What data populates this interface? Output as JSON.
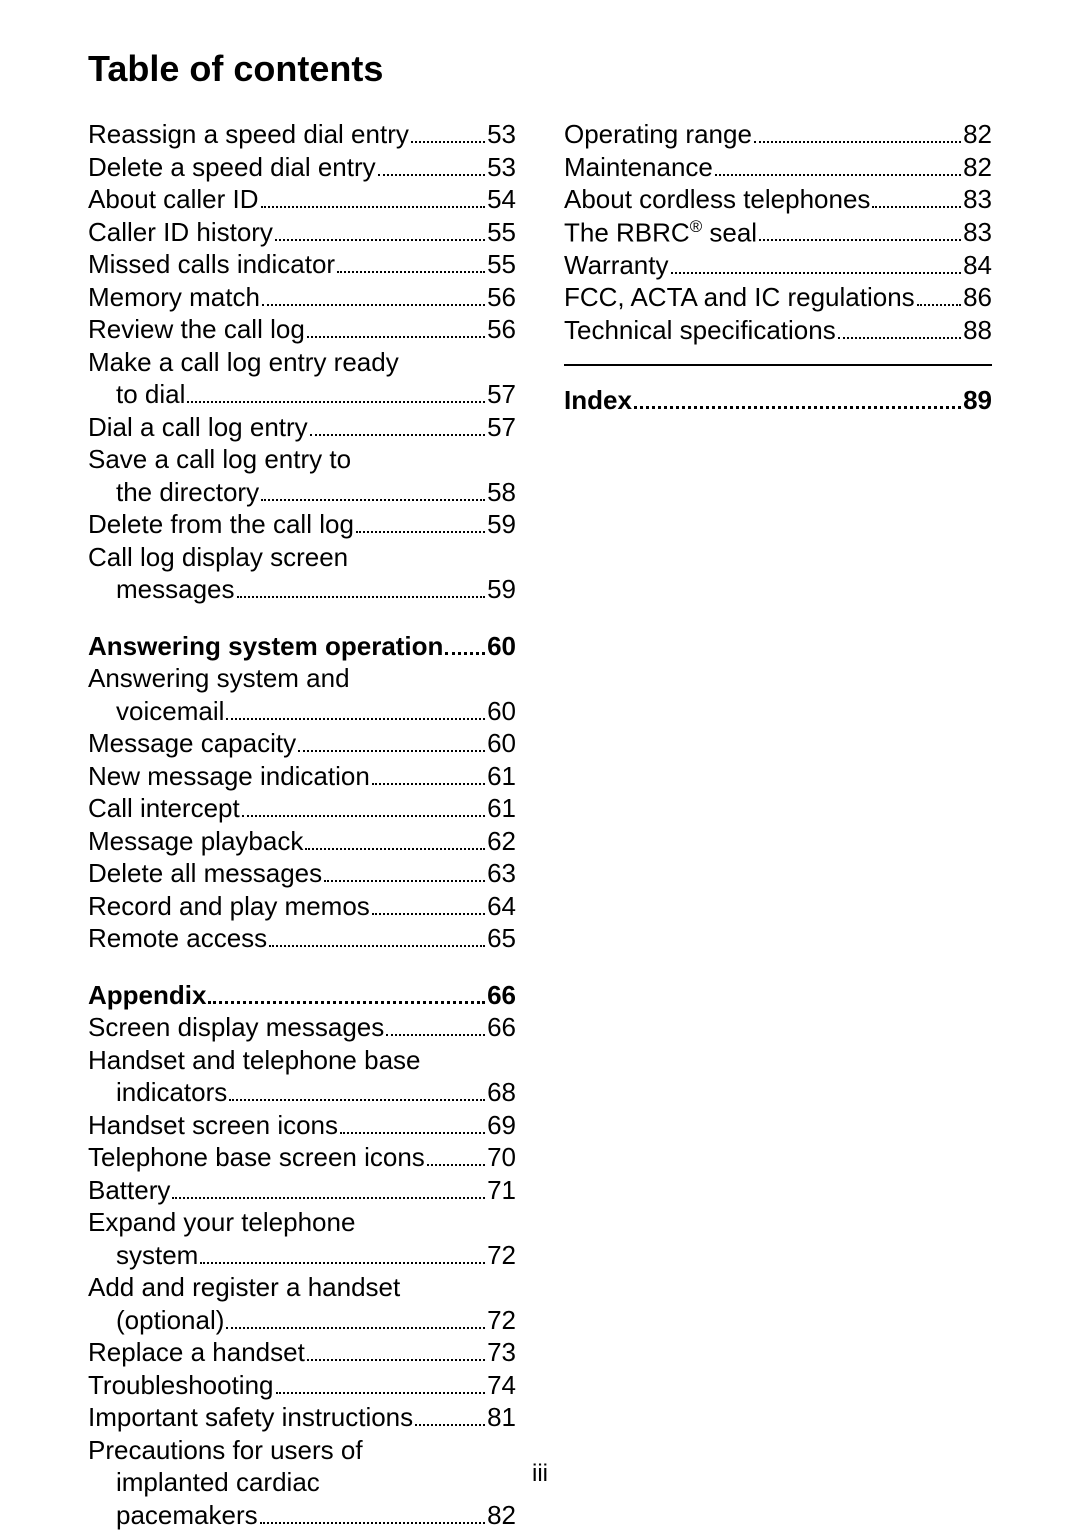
{
  "title": "Table of contents",
  "page_number": "iii",
  "colors": {
    "text": "#000000",
    "background": "#ffffff"
  },
  "typography": {
    "title_fontsize": 36,
    "entry_fontsize": 26,
    "font_family": "Arial"
  },
  "left_column": [
    {
      "type": "entry",
      "label": "Reassign a speed dial entry",
      "page": "53"
    },
    {
      "type": "entry",
      "label": "Delete a speed dial entry",
      "page": "53"
    },
    {
      "type": "entry",
      "label": "About caller ID",
      "page": "54"
    },
    {
      "type": "entry",
      "label": "Caller ID history",
      "page": "55"
    },
    {
      "type": "entry",
      "label": "Missed calls indicator",
      "page": "55"
    },
    {
      "type": "entry",
      "label": "Memory match",
      "page": "56"
    },
    {
      "type": "entry",
      "label": "Review the call log",
      "page": "56"
    },
    {
      "type": "cont",
      "label": "Make a call log entry ready"
    },
    {
      "type": "entry",
      "indent": true,
      "label": "to dial",
      "page": "57"
    },
    {
      "type": "entry",
      "label": "Dial a call log entry",
      "page": "57"
    },
    {
      "type": "cont",
      "label": "Save a call log entry to"
    },
    {
      "type": "entry",
      "indent": true,
      "label": "the directory",
      "page": "58"
    },
    {
      "type": "entry",
      "label": "Delete from the call log",
      "page": "59"
    },
    {
      "type": "cont",
      "label": "Call log display screen"
    },
    {
      "type": "entry",
      "indent": true,
      "label": "messages",
      "page": "59"
    },
    {
      "type": "gap"
    },
    {
      "type": "entry",
      "bold": true,
      "label": "Answering system operation",
      "page": "60"
    },
    {
      "type": "cont",
      "label": "Answering system and"
    },
    {
      "type": "entry",
      "indent": true,
      "label": "voicemail",
      "page": "60"
    },
    {
      "type": "entry",
      "label": "Message capacity",
      "page": "60"
    },
    {
      "type": "entry",
      "label": "New message indication",
      "page": "61"
    },
    {
      "type": "entry",
      "label": "Call intercept",
      "page": "61"
    },
    {
      "type": "entry",
      "label": "Message playback",
      "page": "62"
    },
    {
      "type": "entry",
      "label": "Delete all messages",
      "page": "63"
    },
    {
      "type": "entry",
      "label": "Record and play memos",
      "page": "64"
    },
    {
      "type": "entry",
      "label": "Remote access",
      "page": "65"
    },
    {
      "type": "gap"
    },
    {
      "type": "entry",
      "bold": true,
      "label": "Appendix",
      "page": "66"
    },
    {
      "type": "entry",
      "label": "Screen display messages",
      "page": "66"
    },
    {
      "type": "cont",
      "label": "Handset and telephone base"
    },
    {
      "type": "entry",
      "indent": true,
      "label": "indicators",
      "page": "68"
    },
    {
      "type": "entry",
      "label": "Handset screen icons",
      "page": "69"
    },
    {
      "type": "entry",
      "label": "Telephone base screen icons",
      "page": "70"
    },
    {
      "type": "entry",
      "label": "Battery",
      "page": "71"
    },
    {
      "type": "cont",
      "label": "Expand your telephone"
    },
    {
      "type": "entry",
      "indent": true,
      "label": "system",
      "page": "72"
    },
    {
      "type": "cont",
      "label": "Add and register a handset"
    },
    {
      "type": "entry",
      "indent": true,
      "label": "(optional)",
      "page": "72"
    },
    {
      "type": "entry",
      "label": "Replace a handset",
      "page": "73"
    },
    {
      "type": "entry",
      "label": "Troubleshooting",
      "page": "74"
    },
    {
      "type": "entry",
      "label": "Important safety instructions",
      "page": "81"
    },
    {
      "type": "cont",
      "label": "Precautions for users of"
    },
    {
      "type": "cont",
      "indent": true,
      "label": "implanted cardiac"
    },
    {
      "type": "entry",
      "indent": true,
      "label": "pacemakers",
      "page": "82"
    }
  ],
  "right_column": [
    {
      "type": "entry",
      "label": "Operating range",
      "page": "82"
    },
    {
      "type": "entry",
      "label": "Maintenance",
      "page": "82"
    },
    {
      "type": "entry",
      "label": "About cordless telephones",
      "page": "83"
    },
    {
      "type": "entry",
      "html": true,
      "label": "The RBRC<sup>®</sup> seal",
      "page": "83"
    },
    {
      "type": "entry",
      "label": "Warranty",
      "page": "84"
    },
    {
      "type": "entry",
      "label": "FCC, ACTA and IC regulations",
      "page": "86"
    },
    {
      "type": "entry",
      "label": "Technical specifications",
      "page": "88"
    },
    {
      "type": "hr"
    },
    {
      "type": "entry",
      "bold": true,
      "label": "Index",
      "page": "89"
    }
  ]
}
